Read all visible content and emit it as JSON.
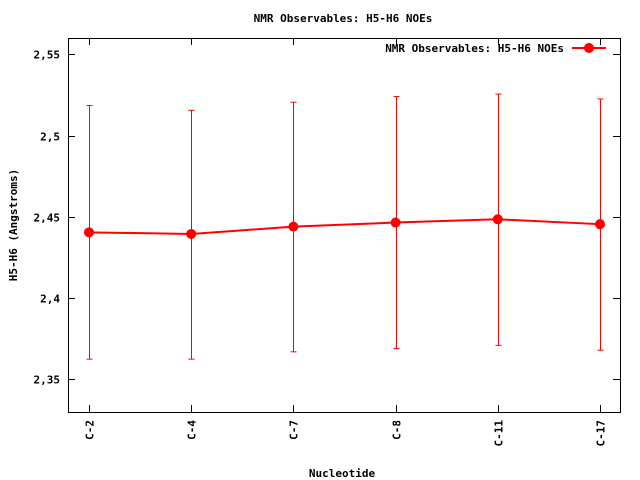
{
  "chart_data": {
    "type": "line",
    "title": "NMR Observables: H5-H6 NOEs",
    "xlabel": "Nucleotide",
    "ylabel": "H5-H6 (Angstroms)",
    "categories": [
      "C-2",
      "C-4",
      "C-7",
      "C-8",
      "C-11",
      "C-17"
    ],
    "ylim": [
      2.33,
      2.56
    ],
    "yticks": [
      2.35,
      2.4,
      2.45,
      2.5,
      2.55
    ],
    "ytick_labels": [
      "2,35",
      "2,4",
      "2,45",
      "2,5",
      "2,55"
    ],
    "grid": false,
    "legend_position": "top-right",
    "series": [
      {
        "name": "NMR Observables: H5-H6 NOEs",
        "color": "#ff0000",
        "values": [
          2.4405,
          2.4395,
          2.444,
          2.4465,
          2.4485,
          2.4455
        ],
        "error_low": [
          2.3625,
          2.3625,
          2.367,
          2.369,
          2.371,
          2.368
        ],
        "error_high": [
          2.5185,
          2.5155,
          2.5205,
          2.524,
          2.5255,
          2.5225
        ]
      }
    ]
  }
}
